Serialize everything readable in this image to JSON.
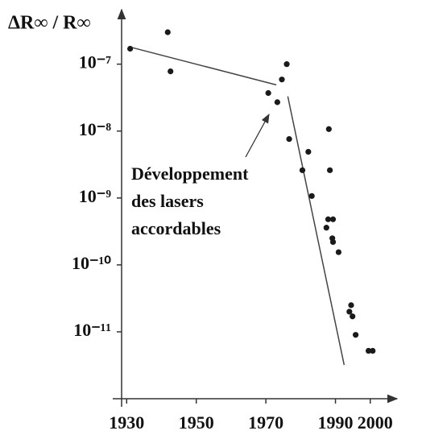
{
  "chart_data": {
    "type": "scatter",
    "ylabel": "ΔR∞ / R∞",
    "annotation": [
      "Développement",
      "des lasers",
      "accordables"
    ],
    "color": "#1a1a1a",
    "log_y": true,
    "xlim": [
      1926,
      2007
    ],
    "ylim": [
      1e-12,
      6e-07
    ],
    "xticks": [
      1930,
      1950,
      1970,
      1990,
      2000
    ],
    "yticks": [
      {
        "value": 1e-07,
        "label": "10⁻⁷"
      },
      {
        "value": 1e-08,
        "label": "10⁻⁸"
      },
      {
        "value": 1e-09,
        "label": "10⁻⁹"
      },
      {
        "value": 1e-10,
        "label": "10⁻¹⁰"
      },
      {
        "value": 1e-11,
        "label": "10⁻¹¹"
      }
    ],
    "x": [
      1931,
      1941.8,
      1942.6,
      1970.7,
      1973.3,
      1974.6,
      1976,
      1976.7,
      1980.5,
      1982.2,
      1983.2,
      1987.4,
      1987.9,
      1988.1,
      1988.4,
      1989.3,
      1989.1,
      1989.3,
      1990.9,
      1994,
      1994.5,
      1994.9,
      1995.8,
      1999.5,
      2000.7
    ],
    "values": [
      1.7e-07,
      3e-07,
      7.8e-08,
      3.7e-08,
      2.7e-08,
      5.9e-08,
      1e-07,
      7.6e-09,
      2.6e-09,
      4.9e-09,
      1.07e-09,
      3.6e-10,
      4.8e-10,
      1.07e-08,
      2.6e-09,
      4.8e-10,
      2.5e-10,
      2.2e-10,
      1.55e-10,
      2e-11,
      2.5e-11,
      1.7e-11,
      9e-12,
      5.2e-12,
      5.2e-12
    ],
    "trend_lines": [
      {
        "x": [
          1931,
          1973
        ],
        "y": [
          1.8e-07,
          4.9e-08
        ]
      },
      {
        "x": [
          1976.3,
          1992.5
        ],
        "y": [
          3.3e-08,
          3.2e-12
        ]
      }
    ]
  }
}
